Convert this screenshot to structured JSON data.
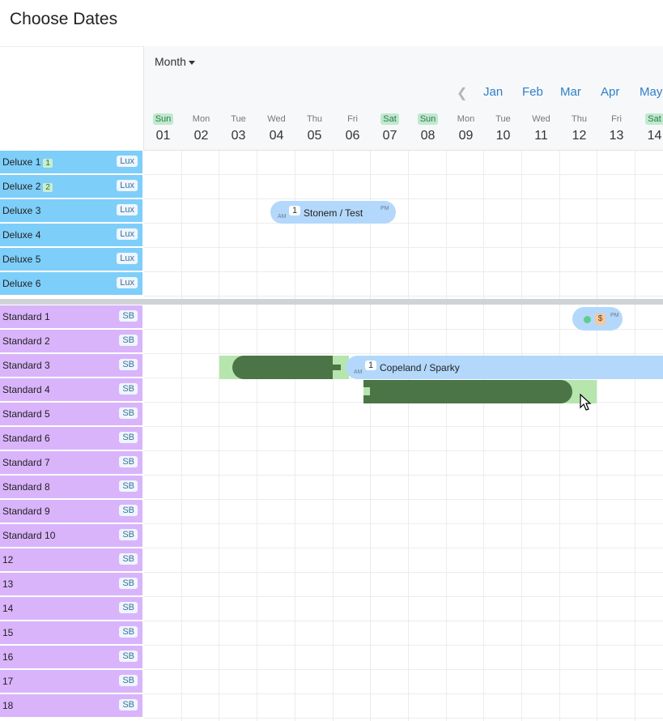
{
  "page": {
    "title": "Choose Dates"
  },
  "header": {
    "view_label": "Month",
    "months": [
      "Jan",
      "Feb",
      "Mar",
      "Apr",
      "May"
    ],
    "days": [
      {
        "name": "Sun",
        "num": "01",
        "weekend": true
      },
      {
        "name": "Mon",
        "num": "02",
        "weekend": false
      },
      {
        "name": "Tue",
        "num": "03",
        "weekend": false
      },
      {
        "name": "Wed",
        "num": "04",
        "weekend": false
      },
      {
        "name": "Thu",
        "num": "05",
        "weekend": false
      },
      {
        "name": "Fri",
        "num": "06",
        "weekend": false
      },
      {
        "name": "Sat",
        "num": "07",
        "weekend": true
      },
      {
        "name": "Sun",
        "num": "08",
        "weekend": true
      },
      {
        "name": "Mon",
        "num": "09",
        "weekend": false
      },
      {
        "name": "Tue",
        "num": "10",
        "weekend": false
      },
      {
        "name": "Wed",
        "num": "11",
        "weekend": false
      },
      {
        "name": "Thu",
        "num": "12",
        "weekend": false
      },
      {
        "name": "Fri",
        "num": "13",
        "weekend": false
      },
      {
        "name": "Sat",
        "num": "14",
        "weekend": true
      }
    ]
  },
  "rooms": [
    {
      "name": "Deluxe 1",
      "count": "1",
      "tag": "Lux",
      "kind": "lux"
    },
    {
      "name": "Deluxe 2",
      "count": "2",
      "tag": "Lux",
      "kind": "lux"
    },
    {
      "name": "Deluxe 3",
      "count": "",
      "tag": "Lux",
      "kind": "lux"
    },
    {
      "name": "Deluxe 4",
      "count": "",
      "tag": "Lux",
      "kind": "lux"
    },
    {
      "name": "Deluxe 5",
      "count": "",
      "tag": "Lux",
      "kind": "lux"
    },
    {
      "name": "Deluxe 6",
      "count": "",
      "tag": "Lux",
      "kind": "lux"
    },
    {
      "name": "Standard 1",
      "count": "",
      "tag": "SB",
      "kind": "std"
    },
    {
      "name": "Standard 2",
      "count": "",
      "tag": "SB",
      "kind": "std"
    },
    {
      "name": "Standard 3",
      "count": "",
      "tag": "SB",
      "kind": "std"
    },
    {
      "name": "Standard 4",
      "count": "",
      "tag": "SB",
      "kind": "std"
    },
    {
      "name": "Standard 5",
      "count": "",
      "tag": "SB",
      "kind": "std"
    },
    {
      "name": "Standard 6",
      "count": "",
      "tag": "SB",
      "kind": "std"
    },
    {
      "name": "Standard 7",
      "count": "",
      "tag": "SB",
      "kind": "std"
    },
    {
      "name": "Standard 8",
      "count": "",
      "tag": "SB",
      "kind": "std"
    },
    {
      "name": "Standard 9",
      "count": "",
      "tag": "SB",
      "kind": "std"
    },
    {
      "name": "Standard 10",
      "count": "",
      "tag": "SB",
      "kind": "std"
    },
    {
      "name": "12",
      "count": "",
      "tag": "SB",
      "kind": "std"
    },
    {
      "name": "13",
      "count": "",
      "tag": "SB",
      "kind": "std"
    },
    {
      "name": "14",
      "count": "",
      "tag": "SB",
      "kind": "std"
    },
    {
      "name": "15",
      "count": "",
      "tag": "SB",
      "kind": "std"
    },
    {
      "name": "16",
      "count": "",
      "tag": "SB",
      "kind": "std"
    },
    {
      "name": "17",
      "count": "",
      "tag": "SB",
      "kind": "std"
    },
    {
      "name": "18",
      "count": "",
      "tag": "SB",
      "kind": "std"
    }
  ],
  "bookings": {
    "stonem": {
      "count": "1",
      "label": "Stonem / Test",
      "am": "AM",
      "pm": "PM"
    },
    "copeland": {
      "count": "1",
      "label": "Copeland / Sparky",
      "am": "AM"
    },
    "small": {
      "symbol": "$",
      "pm": "PM"
    }
  },
  "colors": {
    "lux": "#7ecefa",
    "std": "#d9b4fb",
    "booking": "#b3d8fb",
    "drag_dark": "#4b7546",
    "drag_light": "#b6e5ae"
  }
}
